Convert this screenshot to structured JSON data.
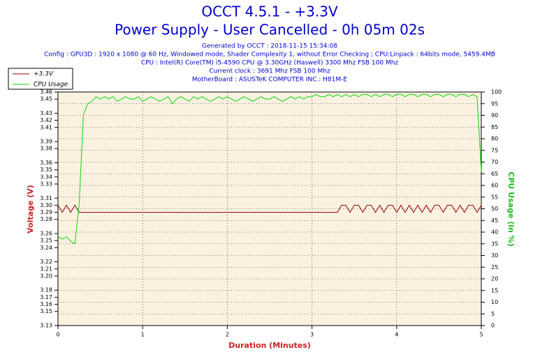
{
  "chart_data": {
    "type": "line",
    "title": "OCCT 4.5.1 - +3.3V",
    "subtitle": "Power Supply - User Cancelled - 0h 05m 02s",
    "info": [
      "Generated by OCCT : 2018-11-15 15:34:08",
      "Config : GPU3D : 1920 x 1080 @ 60 Hz, Windowed mode, Shader Complexity 1, without Error Checking ; CPU:Linpack : 64bits mode, 5459.4MB",
      "CPU : Intel(R) Core(TM) i5-4590 CPU @ 3.30GHz (Haswell) 3300 Mhz FSB 100 Mhz",
      "Current clock : 3691 Mhz FSB 100 Mhz",
      "MotherBoard : ASUSTeK COMPUTER INC.: H81M-E"
    ],
    "xlabel": "Duration (Minutes)",
    "ylabel": "Voltage (V)",
    "y2label": "CPU Usage (in %)",
    "xlim": [
      0,
      5
    ],
    "xticks": [
      0,
      1,
      2,
      3,
      4,
      5
    ],
    "ylim": [
      3.13,
      3.46
    ],
    "yticks": [
      3.13,
      3.15,
      3.16,
      3.17,
      3.18,
      {
        "value": 3.2,
        "label": "3.20"
      },
      3.21,
      3.22,
      3.24,
      3.25,
      3.26,
      3.28,
      3.29,
      {
        "value": 3.3,
        "label": "3.30"
      },
      3.31,
      3.33,
      3.34,
      3.35,
      3.36,
      3.38,
      3.39,
      3.41,
      3.42,
      3.43,
      3.45,
      3.46
    ],
    "y2lim": [
      0,
      100
    ],
    "y2ticks": [
      0,
      5,
      10,
      15,
      20,
      25,
      30,
      35,
      40,
      45,
      50,
      55,
      60,
      65,
      70,
      75,
      80,
      85,
      90,
      95,
      100
    ],
    "grid": true,
    "legend": "upper left",
    "x": [
      0,
      0.05,
      0.1,
      0.15,
      0.2,
      0.25,
      0.3,
      0.35,
      0.4,
      0.45,
      0.5,
      0.55,
      0.6,
      0.65,
      0.7,
      0.75,
      0.8,
      0.85,
      0.9,
      0.95,
      1,
      1.05,
      1.1,
      1.15,
      1.2,
      1.25,
      1.3,
      1.35,
      1.4,
      1.45,
      1.5,
      1.55,
      1.6,
      1.65,
      1.7,
      1.75,
      1.8,
      1.85,
      1.9,
      1.95,
      2,
      2.05,
      2.1,
      2.15,
      2.2,
      2.25,
      2.3,
      2.35,
      2.4,
      2.45,
      2.5,
      2.55,
      2.6,
      2.65,
      2.7,
      2.75,
      2.8,
      2.85,
      2.9,
      2.95,
      3,
      3.05,
      3.1,
      3.15,
      3.2,
      3.25,
      3.3,
      3.35,
      3.4,
      3.45,
      3.5,
      3.55,
      3.6,
      3.65,
      3.7,
      3.75,
      3.8,
      3.85,
      3.9,
      3.95,
      4,
      4.05,
      4.1,
      4.15,
      4.2,
      4.25,
      4.3,
      4.35,
      4.4,
      4.45,
      4.5,
      4.55,
      4.6,
      4.65,
      4.7,
      4.75,
      4.8,
      4.85,
      4.9,
      4.95,
      5
    ],
    "series": [
      {
        "name": "+3.3V",
        "color": "#990000",
        "axis": "y",
        "values": [
          3.3,
          3.29,
          3.3,
          3.29,
          3.3,
          3.29,
          3.29,
          3.29,
          3.29,
          3.29,
          3.29,
          3.29,
          3.29,
          3.29,
          3.29,
          3.29,
          3.29,
          3.29,
          3.29,
          3.29,
          3.29,
          3.29,
          3.29,
          3.29,
          3.29,
          3.29,
          3.29,
          3.29,
          3.29,
          3.29,
          3.29,
          3.29,
          3.29,
          3.29,
          3.29,
          3.29,
          3.29,
          3.29,
          3.29,
          3.29,
          3.29,
          3.29,
          3.29,
          3.29,
          3.29,
          3.29,
          3.29,
          3.29,
          3.29,
          3.29,
          3.29,
          3.29,
          3.29,
          3.29,
          3.29,
          3.29,
          3.29,
          3.29,
          3.29,
          3.29,
          3.29,
          3.29,
          3.29,
          3.29,
          3.29,
          3.29,
          3.29,
          3.3,
          3.3,
          3.29,
          3.3,
          3.3,
          3.29,
          3.3,
          3.3,
          3.29,
          3.3,
          3.29,
          3.3,
          3.3,
          3.29,
          3.3,
          3.29,
          3.3,
          3.29,
          3.3,
          3.29,
          3.3,
          3.29,
          3.3,
          3.3,
          3.29,
          3.3,
          3.3,
          3.29,
          3.3,
          3.29,
          3.3,
          3.3,
          3.29,
          3.3
        ]
      },
      {
        "name": "CPU Usage",
        "color": "#00dd00",
        "axis": "y2",
        "values": [
          38,
          37,
          38,
          36,
          35,
          52,
          90,
          95,
          96,
          98,
          97,
          98,
          97,
          98,
          96,
          97,
          98,
          97,
          97,
          98,
          96,
          97,
          98,
          97,
          96,
          97,
          98,
          95,
          97,
          98,
          97,
          96,
          98,
          97,
          98,
          97,
          96,
          97,
          98,
          97,
          98,
          97,
          96,
          97,
          98,
          97,
          96,
          97,
          98,
          97,
          97,
          98,
          97,
          96,
          97,
          98,
          97,
          98,
          97,
          98,
          98,
          99,
          98,
          98,
          99,
          98,
          99,
          98,
          99,
          98,
          99,
          98,
          99,
          99,
          98,
          99,
          98,
          99,
          99,
          98,
          99,
          99,
          98,
          99,
          99,
          98,
          99,
          99,
          98,
          99,
          99,
          98,
          99,
          99,
          98,
          99,
          99,
          98,
          99,
          98,
          66
        ]
      }
    ]
  }
}
